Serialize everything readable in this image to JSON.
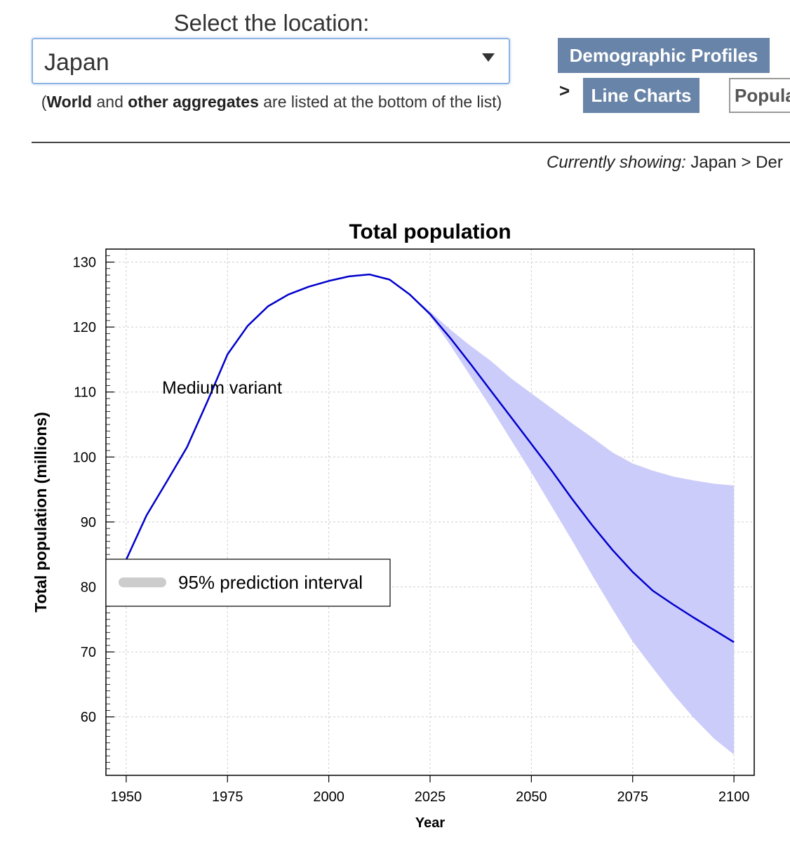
{
  "location_selector": {
    "label": "Select the location:",
    "selected": "Japan",
    "note_prefix": "(",
    "note_bold1": "World",
    "note_mid": " and ",
    "note_bold2": "other aggregates",
    "note_suffix": " are listed at the bottom of the list)"
  },
  "nav": {
    "profiles": "Demographic Profiles",
    "arrow": ">",
    "line_charts": "Line Charts",
    "next_tab": "Popula"
  },
  "currently_showing": {
    "label": "Currently showing:",
    "value": " Japan > Der"
  },
  "chart_data": {
    "type": "line",
    "title": "Total population",
    "xlabel": "Year",
    "ylabel": "Total population (millions)",
    "xlim": [
      1945,
      2105
    ],
    "ylim": [
      51,
      132
    ],
    "x_ticks": [
      1950,
      1975,
      2000,
      2025,
      2050,
      2075,
      2100
    ],
    "y_ticks": [
      60,
      70,
      80,
      90,
      100,
      110,
      120,
      130
    ],
    "grid": true,
    "series": [
      {
        "name": "Medium variant",
        "color": "#0000cc",
        "x": [
          1950,
          1955,
          1960,
          1965,
          1970,
          1975,
          1980,
          1985,
          1990,
          1995,
          2000,
          2005,
          2010,
          2015,
          2020,
          2025,
          2030,
          2035,
          2040,
          2045,
          2050,
          2055,
          2060,
          2065,
          2070,
          2075,
          2080,
          2085,
          2090,
          2095,
          2100
        ],
        "y": [
          84.2,
          91.0,
          96.2,
          101.5,
          108.5,
          115.8,
          120.2,
          123.2,
          125.0,
          126.2,
          127.1,
          127.8,
          128.1,
          127.3,
          125.0,
          122.0,
          118.3,
          114.3,
          110.2,
          106.1,
          102.0,
          97.9,
          93.6,
          89.5,
          85.7,
          82.3,
          79.4,
          77.3,
          75.3,
          73.4,
          71.5
        ]
      }
    ],
    "interval": {
      "name": "95% prediction interval",
      "color": "#ccccfa",
      "x": [
        2020,
        2025,
        2030,
        2035,
        2040,
        2045,
        2050,
        2055,
        2060,
        2065,
        2070,
        2075,
        2080,
        2085,
        2090,
        2095,
        2100
      ],
      "lower": [
        125.0,
        121.7,
        117.2,
        112.4,
        107.6,
        102.6,
        97.6,
        92.4,
        87.2,
        81.8,
        76.6,
        71.6,
        67.5,
        63.5,
        59.9,
        56.7,
        54.2
      ],
      "upper": [
        125.0,
        122.4,
        119.6,
        117.1,
        114.8,
        112.1,
        109.8,
        107.5,
        105.2,
        103.0,
        100.7,
        99.0,
        97.9,
        97.0,
        96.4,
        95.9,
        95.6
      ]
    },
    "annotation": "Medium variant",
    "legend_position": "left-middle"
  }
}
